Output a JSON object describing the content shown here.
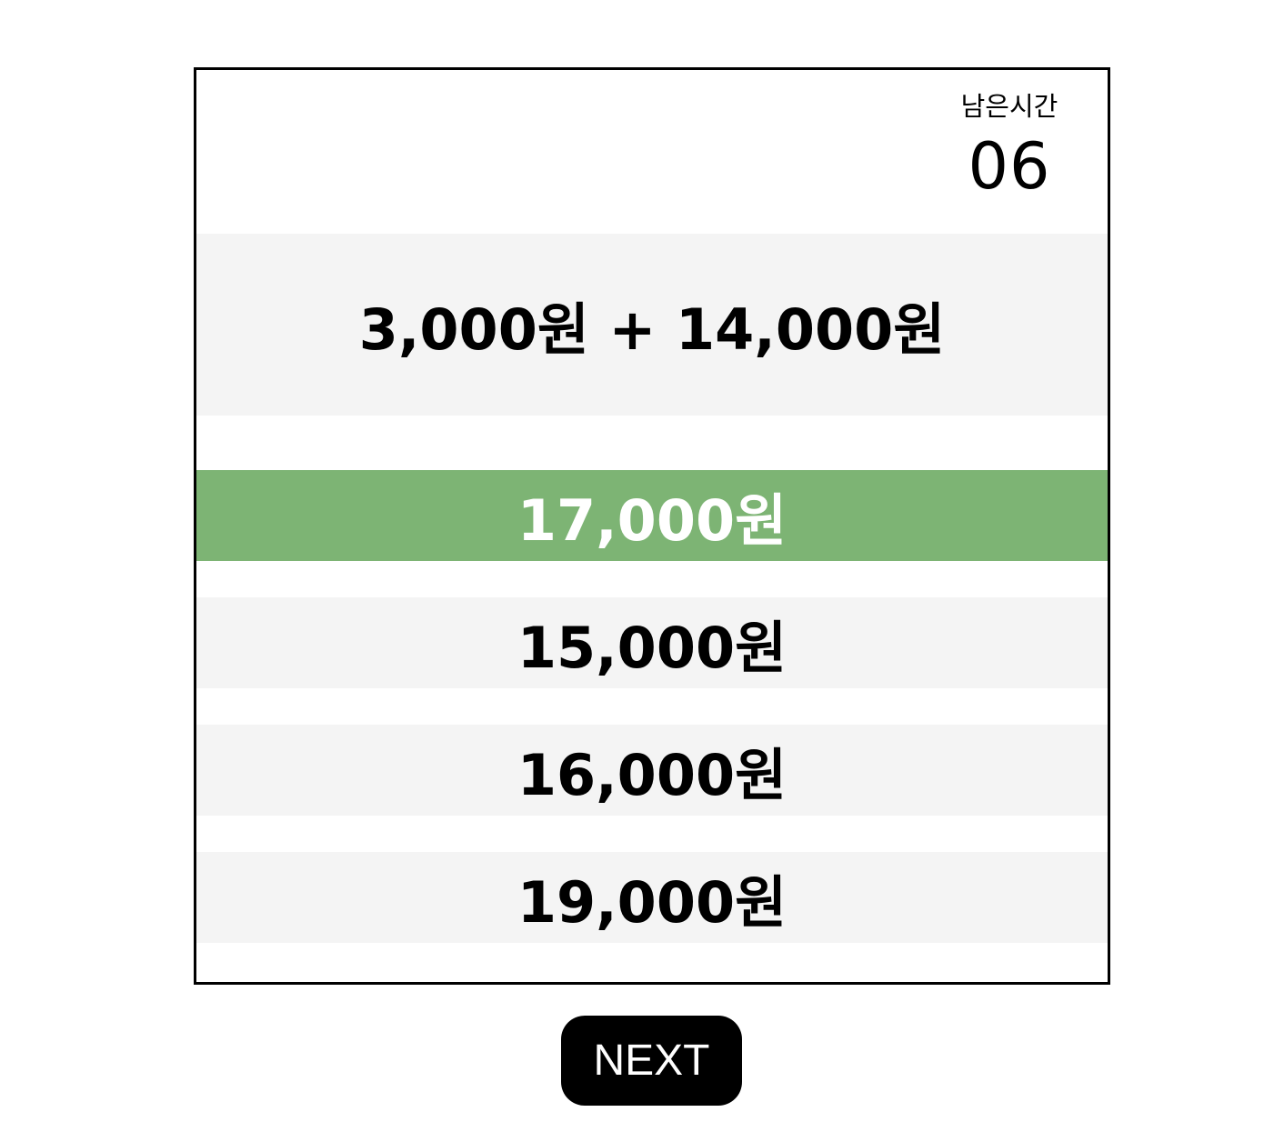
{
  "timer": {
    "label": "남은시간",
    "value": "06"
  },
  "question": {
    "text": "3,000원 + 14,000원"
  },
  "options": [
    {
      "label": "17,000원",
      "selected": true
    },
    {
      "label": "15,000원",
      "selected": false
    },
    {
      "label": "16,000원",
      "selected": false
    },
    {
      "label": "19,000원",
      "selected": false
    }
  ],
  "next_button": {
    "label": "NEXT"
  },
  "colors": {
    "selected_background": "#7db474",
    "option_background": "#f4f4f4",
    "button_background": "#000000"
  }
}
